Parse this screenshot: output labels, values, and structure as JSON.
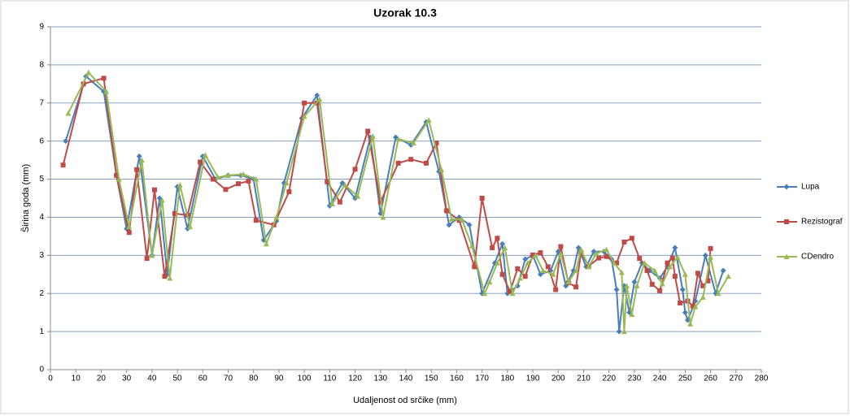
{
  "chart_data": {
    "type": "line",
    "title": "Uzorak 10.3",
    "x_label": "Udaljenost od srčike (mm)",
    "y_label": "Širina goda (mm)",
    "xlim": [
      0,
      280
    ],
    "xticks": [
      0,
      10,
      20,
      30,
      40,
      50,
      60,
      70,
      80,
      90,
      100,
      110,
      120,
      130,
      140,
      150,
      160,
      170,
      180,
      190,
      200,
      210,
      220,
      230,
      240,
      250,
      260,
      270,
      280
    ],
    "ylim": [
      0,
      9
    ],
    "yticks": [
      0,
      1,
      2,
      3,
      4,
      5,
      6,
      7,
      8,
      9
    ],
    "grid": true,
    "legend": "right",
    "series": [
      {
        "name": "Lupa",
        "color": "#4a7ebb",
        "marker": "diamond",
        "x": [
          6,
          14,
          21,
          26,
          30,
          35,
          40,
          43,
          46,
          50,
          54,
          60,
          65,
          70,
          75,
          80,
          84,
          89,
          92,
          99,
          105,
          110,
          115,
          120,
          126,
          130,
          136,
          142,
          148,
          153,
          157,
          161,
          165,
          170,
          175,
          178,
          180,
          184,
          187,
          190,
          193,
          197,
          200,
          203,
          206,
          208,
          211,
          214,
          218,
          221,
          223,
          224,
          226,
          228,
          230,
          233,
          236,
          240,
          243,
          246,
          249,
          250,
          251,
          254,
          258,
          262,
          265
        ],
        "values": [
          6.0,
          7.7,
          7.3,
          5.1,
          3.7,
          5.6,
          3.0,
          4.5,
          2.5,
          4.8,
          3.7,
          5.6,
          5.0,
          5.1,
          5.1,
          5.0,
          3.4,
          3.9,
          4.9,
          6.6,
          7.2,
          4.3,
          4.9,
          4.5,
          6.1,
          4.1,
          6.1,
          5.9,
          6.5,
          5.2,
          3.8,
          4.0,
          3.8,
          2.0,
          2.8,
          3.3,
          2.0,
          2.2,
          2.9,
          3.0,
          2.5,
          2.6,
          3.1,
          2.2,
          2.6,
          3.2,
          2.7,
          3.1,
          3.1,
          2.9,
          2.1,
          1.0,
          2.2,
          1.5,
          2.3,
          2.8,
          2.6,
          2.4,
          2.7,
          3.2,
          2.1,
          1.5,
          1.3,
          1.8,
          3.0,
          2.0,
          2.6
        ]
      },
      {
        "name": "Rezistograf",
        "color": "#be4b48",
        "marker": "square",
        "x": [
          5,
          13,
          21,
          26,
          31,
          34,
          38,
          41,
          45,
          49,
          54,
          59,
          64,
          69,
          74,
          78,
          81,
          88,
          94,
          100,
          105,
          109,
          114,
          120,
          125,
          130,
          137,
          142,
          148,
          152,
          156,
          161,
          167,
          170,
          174,
          176,
          178,
          181,
          184,
          187,
          190,
          193,
          196,
          199,
          201,
          204,
          207,
          209,
          212,
          216,
          219,
          223,
          226,
          229,
          232,
          235,
          237,
          240,
          243,
          245,
          246,
          248,
          251,
          253,
          255,
          257,
          259,
          260
        ],
        "values": [
          5.37,
          7.5,
          7.65,
          5.1,
          3.6,
          5.25,
          2.92,
          4.72,
          2.45,
          4.1,
          4.05,
          5.45,
          5.0,
          4.73,
          4.88,
          4.95,
          3.92,
          3.8,
          4.67,
          7.0,
          7.0,
          4.93,
          4.4,
          5.26,
          6.26,
          4.4,
          5.42,
          5.52,
          5.42,
          5.95,
          4.17,
          3.92,
          2.7,
          4.5,
          3.2,
          3.45,
          2.5,
          2.05,
          2.65,
          2.45,
          3.01,
          3.07,
          2.7,
          2.1,
          3.23,
          2.28,
          2.17,
          3.07,
          2.72,
          2.93,
          2.97,
          2.8,
          3.35,
          3.45,
          2.92,
          2.6,
          2.24,
          2.07,
          2.8,
          2.93,
          2.45,
          1.75,
          1.8,
          1.67,
          2.53,
          2.2,
          2.33,
          3.18
        ]
      },
      {
        "name": "CDendro",
        "color": "#98b954",
        "marker": "triangle",
        "x": [
          7,
          15,
          22,
          27,
          31,
          36,
          40,
          44,
          47,
          51,
          55,
          61,
          66,
          70,
          76,
          81,
          85,
          89,
          93,
          100,
          106,
          111,
          116,
          121,
          127,
          131,
          137,
          143,
          149,
          154,
          158,
          162,
          166,
          171,
          173,
          176,
          179,
          182,
          185,
          188,
          191,
          194,
          198,
          201,
          204,
          207,
          209,
          212,
          215,
          219,
          222,
          225,
          226,
          227,
          229,
          231,
          234,
          238,
          241,
          244,
          247,
          250,
          252,
          254,
          257,
          260,
          263,
          267
        ],
        "values": [
          6.73,
          7.8,
          7.3,
          5.0,
          3.75,
          5.5,
          3.0,
          4.45,
          2.4,
          4.85,
          3.75,
          5.63,
          5.05,
          5.1,
          5.13,
          5.0,
          3.3,
          4.0,
          4.9,
          6.65,
          7.1,
          4.35,
          4.85,
          4.55,
          6.13,
          4.0,
          6.05,
          5.95,
          6.55,
          5.25,
          3.95,
          3.95,
          3.25,
          2.0,
          2.3,
          2.8,
          3.2,
          2.0,
          2.4,
          2.8,
          3.0,
          2.6,
          2.5,
          3.05,
          2.3,
          2.6,
          3.15,
          2.7,
          3.05,
          3.15,
          2.8,
          2.55,
          1.0,
          2.2,
          1.45,
          2.2,
          2.8,
          2.6,
          2.25,
          2.7,
          2.95,
          2.5,
          1.2,
          1.65,
          1.9,
          2.95,
          2.0,
          2.45
        ]
      }
    ]
  }
}
